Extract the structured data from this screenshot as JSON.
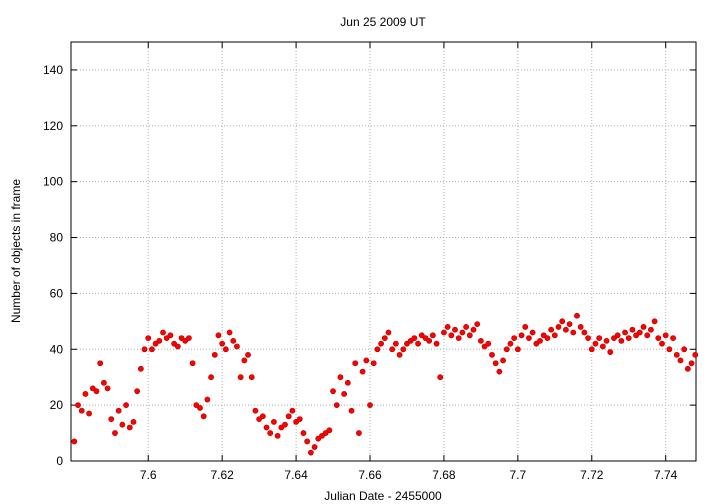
{
  "chart_data": {
    "type": "scatter",
    "title": "Jun 25 2009 UT",
    "xlabel": "Julian Date - 2455000",
    "ylabel": "Number of objects in frame",
    "color": "#ff0000",
    "grid": true,
    "xlim": [
      7.5791,
      7.7482
    ],
    "ylim": [
      0,
      150
    ],
    "xticks": [
      7.6,
      7.62,
      7.64,
      7.66,
      7.68,
      7.7,
      7.72,
      7.74
    ],
    "yticks": [
      0,
      20,
      40,
      60,
      80,
      100,
      120,
      140
    ],
    "x": [
      7.58,
      7.581,
      7.582,
      7.583,
      7.584,
      7.585,
      7.586,
      7.587,
      7.588,
      7.589,
      7.59,
      7.591,
      7.592,
      7.593,
      7.594,
      7.595,
      7.596,
      7.597,
      7.598,
      7.599,
      7.6,
      7.601,
      7.602,
      7.603,
      7.604,
      7.605,
      7.606,
      7.607,
      7.608,
      7.609,
      7.61,
      7.611,
      7.612,
      7.613,
      7.614,
      7.615,
      7.616,
      7.617,
      7.618,
      7.619,
      7.62,
      7.621,
      7.622,
      7.623,
      7.624,
      7.625,
      7.626,
      7.627,
      7.628,
      7.629,
      7.63,
      7.631,
      7.632,
      7.633,
      7.634,
      7.635,
      7.636,
      7.637,
      7.638,
      7.639,
      7.64,
      7.641,
      7.642,
      7.643,
      7.644,
      7.645,
      7.646,
      7.647,
      7.648,
      7.649,
      7.65,
      7.651,
      7.652,
      7.653,
      7.654,
      7.655,
      7.656,
      7.657,
      7.658,
      7.659,
      7.66,
      7.661,
      7.662,
      7.663,
      7.664,
      7.665,
      7.666,
      7.667,
      7.668,
      7.669,
      7.67,
      7.671,
      7.672,
      7.673,
      7.674,
      7.675,
      7.676,
      7.677,
      7.678,
      7.679,
      7.68,
      7.681,
      7.682,
      7.683,
      7.684,
      7.685,
      7.686,
      7.687,
      7.688,
      7.689,
      7.69,
      7.691,
      7.692,
      7.693,
      7.694,
      7.695,
      7.696,
      7.697,
      7.698,
      7.699,
      7.7,
      7.701,
      7.702,
      7.703,
      7.704,
      7.705,
      7.706,
      7.707,
      7.708,
      7.709,
      7.71,
      7.711,
      7.712,
      7.713,
      7.714,
      7.715,
      7.716,
      7.717,
      7.718,
      7.719,
      7.72,
      7.721,
      7.722,
      7.723,
      7.724,
      7.725,
      7.726,
      7.727,
      7.728,
      7.729,
      7.73,
      7.731,
      7.732,
      7.733,
      7.734,
      7.735,
      7.736,
      7.737,
      7.738,
      7.739,
      7.74,
      7.741,
      7.742,
      7.743,
      7.744,
      7.745,
      7.746,
      7.747,
      7.748
    ],
    "y": [
      7,
      20,
      18,
      24,
      17,
      26,
      25,
      35,
      28,
      26,
      15,
      10,
      18,
      13,
      20,
      12,
      14,
      25,
      33,
      40,
      44,
      40,
      42,
      43,
      46,
      44,
      45,
      42,
      41,
      44,
      43,
      44,
      35,
      20,
      19,
      16,
      22,
      30,
      38,
      45,
      42,
      40,
      46,
      43,
      41,
      30,
      36,
      38,
      30,
      18,
      15,
      16,
      12,
      10,
      14,
      9,
      12,
      13,
      16,
      18,
      14,
      15,
      10,
      7,
      3,
      5,
      8,
      9,
      10,
      11,
      25,
      20,
      30,
      24,
      28,
      18,
      35,
      10,
      32,
      36,
      20,
      35,
      40,
      42,
      44,
      46,
      40,
      42,
      38,
      40,
      42,
      43,
      44,
      42,
      45,
      44,
      43,
      45,
      42,
      30,
      46,
      48,
      45,
      47,
      44,
      46,
      48,
      45,
      47,
      49,
      43,
      41,
      42,
      38,
      35,
      32,
      36,
      40,
      42,
      44,
      40,
      45,
      48,
      44,
      46,
      42,
      43,
      45,
      44,
      47,
      45,
      48,
      50,
      47,
      49,
      46,
      52,
      48,
      46,
      44,
      40,
      42,
      44,
      41,
      43,
      39,
      44,
      45,
      43,
      46,
      44,
      47,
      45,
      46,
      48,
      45,
      47,
      50,
      44,
      42,
      45,
      40,
      44,
      38,
      36,
      40,
      33,
      35,
      38
    ]
  }
}
